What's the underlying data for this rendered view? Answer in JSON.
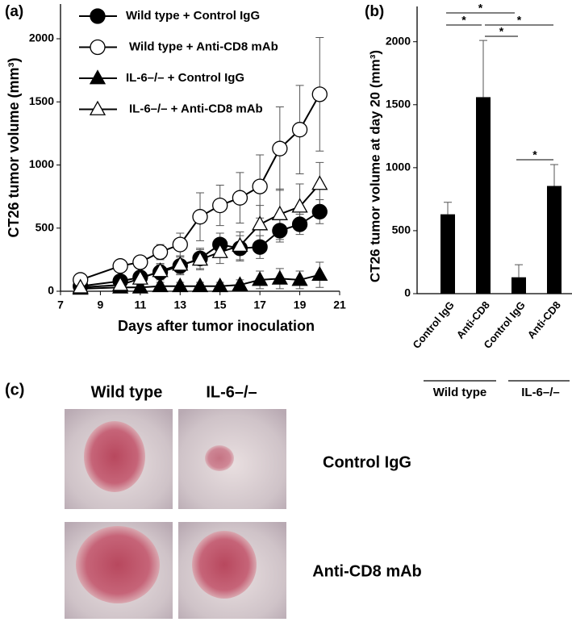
{
  "chart_data": [
    {
      "type": "line",
      "panel": "(a)",
      "x_label": "Days after tumor inoculation",
      "y_label": "CT26 tumor volume (mm³)",
      "x": [
        8,
        10,
        11,
        12,
        13,
        14,
        15,
        16,
        17,
        18,
        19,
        20
      ],
      "xlim": [
        7,
        21
      ],
      "xticks": [
        7,
        9,
        11,
        13,
        15,
        17,
        19,
        21
      ],
      "ylim": [
        0,
        2275
      ],
      "yticks": [
        0,
        500,
        1000,
        1500,
        2000
      ],
      "series": [
        {
          "name": "Wild type + Control IgG",
          "marker": "circle",
          "filled": true,
          "color": "#000000",
          "values": [
            40,
            80,
            110,
            150,
            200,
            260,
            370,
            340,
            350,
            480,
            530,
            630
          ],
          "errors": [
            20,
            40,
            50,
            60,
            70,
            80,
            90,
            100,
            90,
            90,
            80,
            95
          ]
        },
        {
          "name": "Wild type + Anti-CD8 mAb",
          "marker": "circle",
          "filled": false,
          "color": "#000000",
          "values": [
            90,
            200,
            230,
            310,
            370,
            590,
            680,
            740,
            830,
            1130,
            1280,
            1560
          ],
          "errors": [
            30,
            40,
            50,
            60,
            90,
            190,
            160,
            200,
            250,
            330,
            350,
            450
          ]
        },
        {
          "name": "IL-6–/– + Control IgG",
          "marker": "triangle",
          "filled": true,
          "color": "#000000",
          "values": [
            20,
            30,
            30,
            40,
            40,
            40,
            40,
            50,
            90,
            100,
            90,
            130
          ],
          "errors": [
            10,
            20,
            20,
            30,
            30,
            30,
            30,
            40,
            70,
            80,
            70,
            100
          ]
        },
        {
          "name": "IL-6–/– + Anti-CD8 mAb",
          "marker": "triangle",
          "filled": false,
          "color": "#000000",
          "values": [
            30,
            50,
            100,
            160,
            210,
            250,
            310,
            360,
            530,
            610,
            670,
            850
          ],
          "errors": [
            20,
            30,
            40,
            60,
            70,
            80,
            90,
            110,
            150,
            200,
            180,
            170
          ]
        }
      ]
    },
    {
      "type": "bar",
      "panel": "(b)",
      "y_label": "CT26 tumor volume at day 20 (mm³)",
      "categories": [
        "Control IgG",
        "Anti-CD8",
        "Control IgG",
        "Anti-CD8"
      ],
      "groups": [
        "Wild type",
        "IL-6–/–"
      ],
      "values": [
        630,
        1560,
        130,
        855
      ],
      "errors": [
        95,
        450,
        100,
        170
      ],
      "color": "#000000",
      "ylim": [
        0,
        2280
      ],
      "yticks": [
        0,
        500,
        1000,
        1500,
        2000
      ],
      "significance": [
        "*",
        "*",
        "*",
        "*",
        "*"
      ]
    }
  ],
  "photo_panel": {
    "panel": "(c)",
    "columns": [
      "Wild type",
      "IL-6–/–"
    ],
    "rows": [
      "Control IgG",
      "Anti-CD8 mAb"
    ]
  }
}
